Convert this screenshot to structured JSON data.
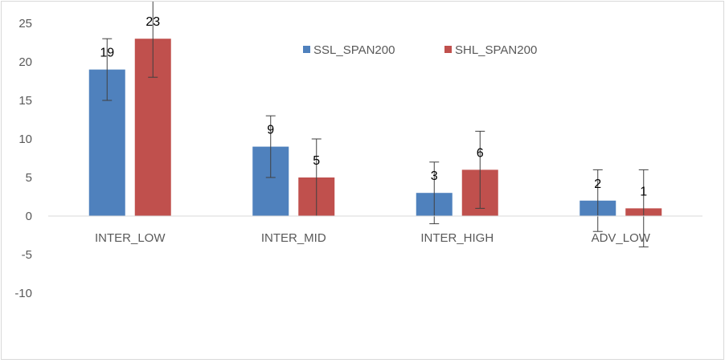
{
  "chart_data": {
    "type": "bar",
    "title": "",
    "xlabel": "",
    "ylabel": "",
    "categories": [
      "INTER_LOW",
      "INTER_MID",
      "INTER_HIGH",
      "ADV_LOW"
    ],
    "series": [
      {
        "name": "SSL_SPAN200",
        "color": "#4f81bd",
        "values": [
          19,
          9,
          3,
          2
        ],
        "error": [
          4,
          4,
          4,
          4
        ]
      },
      {
        "name": "SHL_SPAN200",
        "color": "#c0504d",
        "values": [
          23,
          5,
          6,
          1
        ],
        "error": [
          5,
          5,
          5,
          5
        ]
      }
    ],
    "ylim": [
      -10,
      25
    ],
    "yticks": [
      25,
      20,
      15,
      10,
      5,
      0,
      -5,
      -10
    ],
    "data_labels": true,
    "legend_position": "top-right",
    "grid": false
  }
}
